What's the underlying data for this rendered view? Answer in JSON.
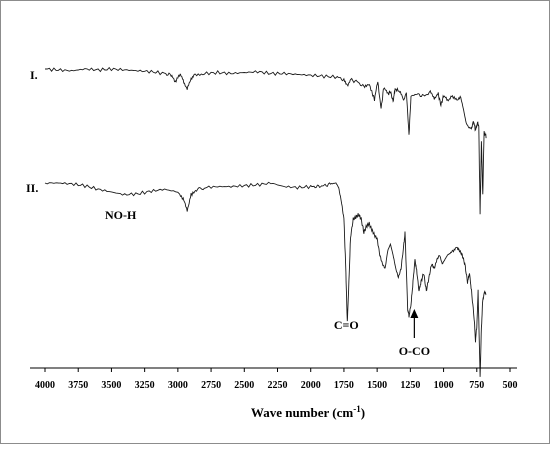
{
  "chart_data": {
    "type": "line",
    "title": "",
    "xlabel": "Wave number (cm",
    "xlabel_sup": "-1",
    "xlabel_close": ")",
    "ylabel": "",
    "xlim": [
      4000,
      500
    ],
    "x_reversed": true,
    "x_ticks": [
      "4000",
      "3750",
      "3500",
      "3250",
      "3000",
      "2750",
      "2500",
      "2250",
      "2000",
      "1750",
      "1500",
      "1250",
      "1000",
      "750",
      "500"
    ],
    "grid": false,
    "series": [
      {
        "name": "I.",
        "points": [
          [
            4000,
            0.0
          ],
          [
            3900,
            0.01
          ],
          [
            3800,
            0.02
          ],
          [
            3700,
            0.0
          ],
          [
            3600,
            0.01
          ],
          [
            3500,
            0.0
          ],
          [
            3400,
            0.01
          ],
          [
            3300,
            0.02
          ],
          [
            3200,
            0.03
          ],
          [
            3100,
            0.05
          ],
          [
            3050,
            0.07
          ],
          [
            3020,
            0.15
          ],
          [
            3000,
            0.09
          ],
          [
            2980,
            0.06
          ],
          [
            2960,
            0.12
          ],
          [
            2930,
            0.23
          ],
          [
            2900,
            0.1
          ],
          [
            2870,
            0.06
          ],
          [
            2800,
            0.05
          ],
          [
            2700,
            0.04
          ],
          [
            2600,
            0.05
          ],
          [
            2500,
            0.04
          ],
          [
            2400,
            0.03
          ],
          [
            2300,
            0.05
          ],
          [
            2200,
            0.05
          ],
          [
            2100,
            0.06
          ],
          [
            2000,
            0.07
          ],
          [
            1900,
            0.08
          ],
          [
            1800,
            0.09
          ],
          [
            1750,
            0.12
          ],
          [
            1720,
            0.18
          ],
          [
            1700,
            0.12
          ],
          [
            1650,
            0.14
          ],
          [
            1600,
            0.2
          ],
          [
            1560,
            0.17
          ],
          [
            1520,
            0.34
          ],
          [
            1495,
            0.14
          ],
          [
            1470,
            0.44
          ],
          [
            1450,
            0.2
          ],
          [
            1420,
            0.28
          ],
          [
            1400,
            0.25
          ],
          [
            1380,
            0.36
          ],
          [
            1365,
            0.22
          ],
          [
            1330,
            0.25
          ],
          [
            1300,
            0.35
          ],
          [
            1280,
            0.26
          ],
          [
            1260,
            0.73
          ],
          [
            1245,
            0.3
          ],
          [
            1200,
            0.28
          ],
          [
            1150,
            0.3
          ],
          [
            1100,
            0.26
          ],
          [
            1070,
            0.32
          ],
          [
            1040,
            0.28
          ],
          [
            1020,
            0.4
          ],
          [
            1000,
            0.3
          ],
          [
            970,
            0.35
          ],
          [
            940,
            0.3
          ],
          [
            900,
            0.34
          ],
          [
            870,
            0.32
          ],
          [
            850,
            0.45
          ],
          [
            830,
            0.6
          ],
          [
            810,
            0.65
          ],
          [
            790,
            0.66
          ],
          [
            775,
            0.58
          ],
          [
            760,
            0.68
          ],
          [
            745,
            0.6
          ],
          [
            735,
            0.63
          ],
          [
            725,
            1.6
          ],
          [
            715,
            0.8
          ],
          [
            705,
            1.4
          ],
          [
            695,
            0.7
          ],
          [
            680,
            0.75
          ]
        ]
      },
      {
        "name": "II.",
        "points": [
          [
            4000,
            0.0
          ],
          [
            3900,
            0.0
          ],
          [
            3800,
            0.01
          ],
          [
            3700,
            0.03
          ],
          [
            3600,
            0.07
          ],
          [
            3500,
            0.1
          ],
          [
            3400,
            0.13
          ],
          [
            3300,
            0.12
          ],
          [
            3200,
            0.09
          ],
          [
            3100,
            0.07
          ],
          [
            3000,
            0.1
          ],
          [
            2960,
            0.18
          ],
          [
            2930,
            0.3
          ],
          [
            2900,
            0.13
          ],
          [
            2860,
            0.08
          ],
          [
            2800,
            0.05
          ],
          [
            2700,
            0.04
          ],
          [
            2600,
            0.04
          ],
          [
            2500,
            0.03
          ],
          [
            2400,
            0.02
          ],
          [
            2300,
            0.0
          ],
          [
            2200,
            0.04
          ],
          [
            2100,
            0.05
          ],
          [
            2000,
            0.04
          ],
          [
            1950,
            0.04
          ],
          [
            1900,
            0.03
          ],
          [
            1850,
            0.01
          ],
          [
            1810,
            0.0
          ],
          [
            1790,
            0.05
          ],
          [
            1770,
            0.2
          ],
          [
            1750,
            0.4
          ],
          [
            1735,
            1.0
          ],
          [
            1725,
            1.55
          ],
          [
            1715,
            1.2
          ],
          [
            1700,
            0.6
          ],
          [
            1680,
            0.4
          ],
          [
            1660,
            0.38
          ],
          [
            1640,
            0.35
          ],
          [
            1620,
            0.4
          ],
          [
            1600,
            0.55
          ],
          [
            1580,
            0.48
          ],
          [
            1560,
            0.45
          ],
          [
            1540,
            0.52
          ],
          [
            1520,
            0.58
          ],
          [
            1500,
            0.62
          ],
          [
            1480,
            0.8
          ],
          [
            1460,
            0.9
          ],
          [
            1440,
            0.95
          ],
          [
            1420,
            0.75
          ],
          [
            1400,
            0.68
          ],
          [
            1380,
            0.8
          ],
          [
            1360,
            0.95
          ],
          [
            1340,
            1.05
          ],
          [
            1320,
            0.95
          ],
          [
            1300,
            0.7
          ],
          [
            1290,
            0.55
          ],
          [
            1270,
            1.4
          ],
          [
            1260,
            1.48
          ],
          [
            1245,
            1.35
          ],
          [
            1230,
            1.1
          ],
          [
            1215,
            0.85
          ],
          [
            1200,
            1.0
          ],
          [
            1185,
            1.2
          ],
          [
            1170,
            1.1
          ],
          [
            1150,
            1.0
          ],
          [
            1130,
            1.2
          ],
          [
            1110,
            1.05
          ],
          [
            1090,
            0.9
          ],
          [
            1070,
            0.95
          ],
          [
            1050,
            0.85
          ],
          [
            1030,
            0.8
          ],
          [
            1010,
            0.9
          ],
          [
            990,
            0.85
          ],
          [
            970,
            0.8
          ],
          [
            950,
            0.78
          ],
          [
            930,
            0.75
          ],
          [
            900,
            0.72
          ],
          [
            880,
            0.75
          ],
          [
            860,
            0.8
          ],
          [
            840,
            0.9
          ],
          [
            820,
            1.1
          ],
          [
            805,
            1.0
          ],
          [
            790,
            1.2
          ],
          [
            770,
            1.5
          ],
          [
            760,
            1.75
          ],
          [
            750,
            1.6
          ],
          [
            740,
            1.2
          ],
          [
            725,
            2.15
          ],
          [
            715,
            1.6
          ],
          [
            705,
            1.3
          ],
          [
            690,
            1.2
          ],
          [
            680,
            1.25
          ]
        ]
      }
    ],
    "annotations": [
      {
        "text": "NO-H",
        "x": 3430,
        "series": "II."
      },
      {
        "text": "C=O",
        "x": 1725,
        "series": "II."
      },
      {
        "text": "O-CO",
        "x": 1250,
        "series": "II.",
        "arrow": true
      }
    ]
  }
}
